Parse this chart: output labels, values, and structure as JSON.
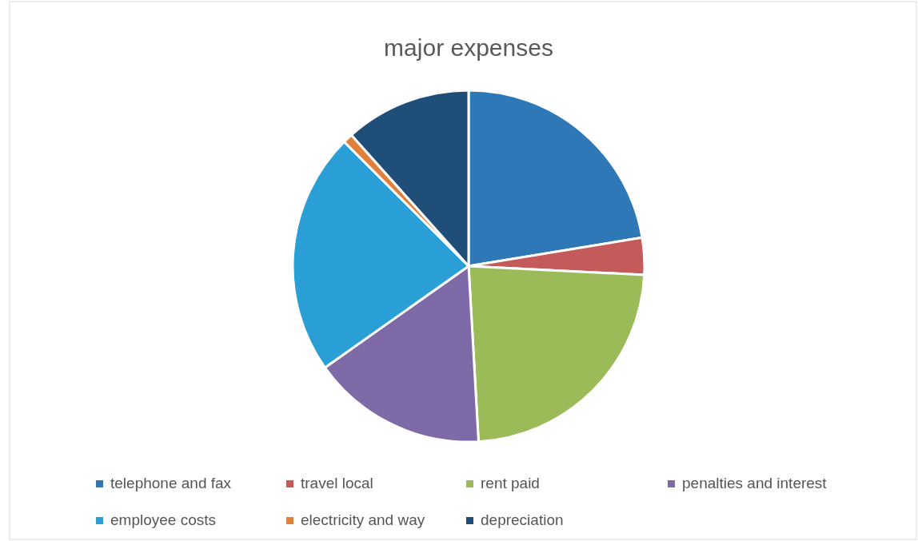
{
  "chart_data": {
    "type": "pie",
    "title": "major expenses",
    "categories": [
      "telephone and fax",
      "travel local",
      "rent paid",
      "penalties and interest",
      "employee costs",
      "electricity and way",
      "depreciation"
    ],
    "values": [
      22.4,
      3.4,
      23.3,
      16.1,
      22.3,
      0.9,
      11.6
    ],
    "colors": [
      "#2e78b8",
      "#c55a5a",
      "#9bbb59",
      "#7d6aa6",
      "#2a9fd6",
      "#e0803c",
      "#1f4e79"
    ],
    "legend": "bottom"
  }
}
